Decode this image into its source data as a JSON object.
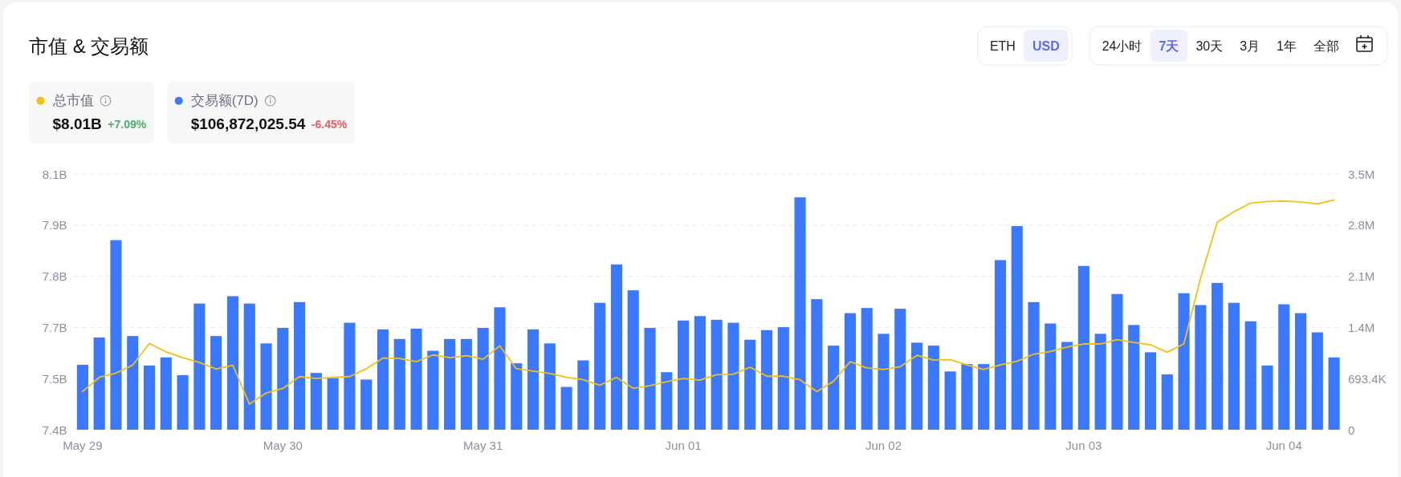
{
  "chart_data": {
    "type": "bar",
    "title": "市值 & 交易额",
    "categories": [
      "May 29",
      null,
      null,
      null,
      null,
      null,
      null,
      null,
      null,
      null,
      null,
      null,
      "May 30",
      null,
      null,
      null,
      null,
      null,
      null,
      null,
      null,
      null,
      null,
      null,
      "May 31",
      null,
      null,
      null,
      null,
      null,
      null,
      null,
      null,
      null,
      null,
      null,
      "Jun 01",
      null,
      null,
      null,
      null,
      null,
      null,
      null,
      null,
      null,
      null,
      null,
      "Jun 02",
      null,
      null,
      null,
      null,
      null,
      null,
      null,
      null,
      null,
      null,
      null,
      "Jun 03",
      null,
      null,
      null,
      null,
      null,
      null,
      null,
      null,
      null,
      null,
      null,
      "Jun 04",
      null,
      null,
      null
    ],
    "ylim": [
      7.41,
      8.06
    ],
    "yticks": [
      {
        "value": 7.41,
        "label": "7.4B"
      },
      {
        "value": 7.54,
        "label": "7.5B"
      },
      {
        "value": 7.67,
        "label": "7.7B"
      },
      {
        "value": 7.8,
        "label": "7.8B"
      },
      {
        "value": 7.93,
        "label": "7.9B"
      },
      {
        "value": 8.06,
        "label": "8.1B"
      }
    ],
    "y2lim": [
      0,
      3467000
    ],
    "y2ticks": [
      0,
      {
        "value": 693400,
        "label": "693.4K"
      },
      {
        "value": 1386800,
        "label": "1.4M"
      },
      {
        "value": 2080200,
        "label": "2.1M"
      },
      {
        "value": 2773600,
        "label": "2.8M"
      },
      {
        "value": 3467000,
        "label": "3.5M"
      }
    ],
    "series": [
      {
        "name": "总市值",
        "type": "line",
        "axis": "y",
        "color": "#f5c00f",
        "values": [
          7.507,
          7.543,
          7.554,
          7.574,
          7.629,
          7.608,
          7.593,
          7.581,
          7.564,
          7.574,
          7.475,
          7.503,
          7.515,
          7.545,
          7.54,
          7.543,
          7.545,
          7.565,
          7.592,
          7.591,
          7.583,
          7.6,
          7.593,
          7.598,
          7.589,
          7.623,
          7.565,
          7.559,
          7.553,
          7.543,
          7.537,
          7.523,
          7.543,
          7.515,
          7.522,
          7.532,
          7.54,
          7.536,
          7.55,
          7.551,
          7.569,
          7.546,
          7.546,
          7.537,
          7.507,
          7.533,
          7.583,
          7.567,
          7.563,
          7.57,
          7.599,
          7.587,
          7.588,
          7.575,
          7.563,
          7.575,
          7.584,
          7.602,
          7.609,
          7.62,
          7.628,
          7.628,
          7.639,
          7.632,
          7.626,
          7.607,
          7.628,
          7.795,
          7.937,
          7.964,
          7.986,
          7.99,
          7.991,
          7.989,
          7.984,
          7.994
        ]
      },
      {
        "name": "交易额(7D)",
        "axis": "y2",
        "color": "#3b78fe",
        "values": [
          880000,
          1250000,
          2570000,
          1270000,
          870000,
          980000,
          740000,
          1710000,
          1270000,
          1810000,
          1710000,
          1170000,
          1380000,
          1730000,
          770000,
          700000,
          1450000,
          680000,
          1360000,
          1230000,
          1370000,
          1070000,
          1230000,
          1230000,
          1380000,
          1660000,
          900000,
          1360000,
          1170000,
          580000,
          940000,
          1720000,
          2240000,
          1890000,
          1380000,
          780000,
          1480000,
          1540000,
          1490000,
          1450000,
          1220000,
          1350000,
          1390000,
          3150000,
          1770000,
          1140000,
          1580000,
          1650000,
          1300000,
          1640000,
          1180000,
          1140000,
          790000,
          890000,
          890000,
          2300000,
          2760000,
          1730000,
          1440000,
          1190000,
          2220000,
          1300000,
          1840000,
          1420000,
          1050000,
          750000,
          1850000,
          1690000,
          1990000,
          1720000,
          1470000,
          870000,
          1700000,
          1580000,
          1320000,
          980000
        ]
      }
    ],
    "grid": "y",
    "legend": "top left",
    "annotations": [
      "$8.01B",
      "+7.09%",
      "$106,872,025.54",
      "-6.45%",
      "ETH",
      "USD",
      "24小时",
      "7天",
      "30天",
      "3月",
      "1年",
      "全部"
    ]
  }
}
